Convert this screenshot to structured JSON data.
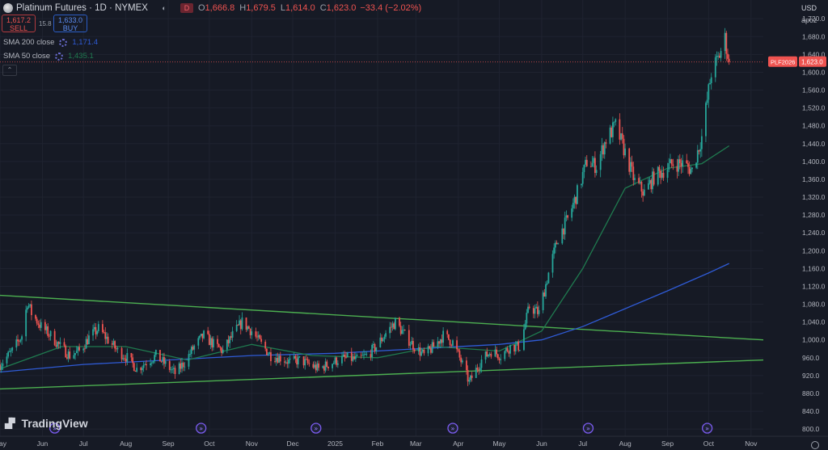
{
  "header": {
    "title": "Platinum Futures · 1D · NYMEX",
    "flag_d": "D",
    "o_label": "O",
    "o_value": "1,666.8",
    "h_label": "H",
    "h_value": "1,679.5",
    "l_label": "L",
    "l_value": "1,614.0",
    "c_label": "C",
    "c_value": "1,623.0",
    "change": "−33.4 (−2.02%)"
  },
  "trade": {
    "sell_price": "1,617.2",
    "sell_label": "SELL",
    "spread": "15.8",
    "buy_price": "1,633.0",
    "buy_label": "BUY"
  },
  "indicators": [
    {
      "name": "SMA 200 close",
      "value": "1,171.4",
      "color": "#2f5bd6"
    },
    {
      "name": "SMA 50 close",
      "value": "1,435.1",
      "color": "#1f7a4f"
    }
  ],
  "currency": "USD",
  "scale_mode": "apoz",
  "brand": "TradingView",
  "price_tag": {
    "symbol": "PLF2026",
    "value": "1,623.0"
  },
  "colors": {
    "bg": "#161a25",
    "up": "#26a69a",
    "down": "#ef5350",
    "trendline": "#4caf50",
    "grid": "#1f2330"
  },
  "chart_data": {
    "type": "candlestick",
    "y_ticks": [
      "800.0",
      "840.0",
      "880.0",
      "920.0",
      "960.0",
      "1,000.0",
      "1,040.0",
      "1,080.0",
      "1,120.0",
      "1,160.0",
      "1,200.0",
      "1,240.0",
      "1,280.0",
      "1,320.0",
      "1,360.0",
      "1,400.0",
      "1,440.0",
      "1,480.0",
      "1,520.0",
      "1,560.0",
      "1,600.0",
      "1,640.0",
      "1,680.0",
      "1,720.0"
    ],
    "ylim": [
      784,
      1762
    ],
    "x_ticks": [
      "May",
      "Jun",
      "Jul",
      "Aug",
      "Sep",
      "Oct",
      "Nov",
      "Dec",
      "2025",
      "Feb",
      "Mar",
      "Apr",
      "May",
      "Jun",
      "Jul",
      "Aug",
      "Sep",
      "Oct",
      "Nov"
    ],
    "xlim": [
      "2024-05-01",
      "2025-11-10"
    ],
    "event_dates": [
      "2024-06-10",
      "2024-09-25",
      "2024-12-18",
      "2025-03-28",
      "2025-07-05",
      "2025-09-30"
    ],
    "last_price": 1623.0,
    "close": [
      [
        "2024-05-01",
        945
      ],
      [
        "2024-05-10",
        975
      ],
      [
        "2024-05-17",
        1010
      ],
      [
        "2024-05-21",
        1085
      ],
      [
        "2024-05-24",
        1060
      ],
      [
        "2024-05-31",
        1030
      ],
      [
        "2024-06-07",
        1010
      ],
      [
        "2024-06-14",
        985
      ],
      [
        "2024-06-21",
        965
      ],
      [
        "2024-06-28",
        975
      ],
      [
        "2024-07-05",
        1005
      ],
      [
        "2024-07-12",
        1025
      ],
      [
        "2024-07-19",
        1000
      ],
      [
        "2024-07-26",
        975
      ],
      [
        "2024-08-02",
        960
      ],
      [
        "2024-08-09",
        935
      ],
      [
        "2024-08-16",
        950
      ],
      [
        "2024-08-23",
        965
      ],
      [
        "2024-08-30",
        945
      ],
      [
        "2024-09-06",
        925
      ],
      [
        "2024-09-13",
        950
      ],
      [
        "2024-09-20",
        985
      ],
      [
        "2024-09-27",
        1010
      ],
      [
        "2024-10-04",
        990
      ],
      [
        "2024-10-11",
        975
      ],
      [
        "2024-10-18",
        1010
      ],
      [
        "2024-10-25",
        1040
      ],
      [
        "2024-11-01",
        1020
      ],
      [
        "2024-11-08",
        990
      ],
      [
        "2024-11-15",
        965
      ],
      [
        "2024-11-22",
        960
      ],
      [
        "2024-11-29",
        950
      ],
      [
        "2024-12-06",
        955
      ],
      [
        "2024-12-13",
        945
      ],
      [
        "2024-12-20",
        935
      ],
      [
        "2024-12-27",
        945
      ],
      [
        "2025-01-03",
        955
      ],
      [
        "2025-01-10",
        960
      ],
      [
        "2025-01-17",
        955
      ],
      [
        "2025-01-24",
        965
      ],
      [
        "2025-01-31",
        985
      ],
      [
        "2025-02-07",
        1015
      ],
      [
        "2025-02-14",
        1040
      ],
      [
        "2025-02-21",
        1010
      ],
      [
        "2025-02-28",
        985
      ],
      [
        "2025-03-07",
        965
      ],
      [
        "2025-03-14",
        985
      ],
      [
        "2025-03-21",
        1010
      ],
      [
        "2025-03-28",
        995
      ],
      [
        "2025-04-04",
        945
      ],
      [
        "2025-04-09",
        905
      ],
      [
        "2025-04-18",
        955
      ],
      [
        "2025-04-25",
        975
      ],
      [
        "2025-05-02",
        965
      ],
      [
        "2025-05-09",
        985
      ],
      [
        "2025-05-16",
        985
      ],
      [
        "2025-05-23",
        1075
      ],
      [
        "2025-05-30",
        1060
      ],
      [
        "2025-06-06",
        1150
      ],
      [
        "2025-06-13",
        1230
      ],
      [
        "2025-06-20",
        1270
      ],
      [
        "2025-06-27",
        1330
      ],
      [
        "2025-07-04",
        1400
      ],
      [
        "2025-07-11",
        1390
      ],
      [
        "2025-07-18",
        1450
      ],
      [
        "2025-07-25",
        1480
      ],
      [
        "2025-08-01",
        1420
      ],
      [
        "2025-08-08",
        1355
      ],
      [
        "2025-08-15",
        1330
      ],
      [
        "2025-08-22",
        1365
      ],
      [
        "2025-08-29",
        1380
      ],
      [
        "2025-09-05",
        1395
      ],
      [
        "2025-09-12",
        1395
      ],
      [
        "2025-09-19",
        1380
      ],
      [
        "2025-09-26",
        1455
      ],
      [
        "2025-10-03",
        1600
      ],
      [
        "2025-10-08",
        1630
      ],
      [
        "2025-10-13",
        1675
      ],
      [
        "2025-10-16",
        1623
      ]
    ],
    "trendlines": [
      {
        "from": [
          "2024-05-01",
          1100
        ],
        "to": [
          "2025-11-10",
          1000
        ]
      },
      {
        "from": [
          "2024-05-01",
          890
        ],
        "to": [
          "2025-11-10",
          955
        ]
      }
    ],
    "sma200": [
      [
        "2024-05-01",
        928
      ],
      [
        "2024-07-01",
        945
      ],
      [
        "2024-09-01",
        955
      ],
      [
        "2024-11-01",
        965
      ],
      [
        "2025-01-01",
        970
      ],
      [
        "2025-03-01",
        980
      ],
      [
        "2025-05-01",
        990
      ],
      [
        "2025-06-01",
        1000
      ],
      [
        "2025-07-01",
        1030
      ],
      [
        "2025-08-01",
        1070
      ],
      [
        "2025-09-01",
        1110
      ],
      [
        "2025-10-01",
        1150
      ],
      [
        "2025-10-16",
        1171.4
      ]
    ],
    "sma50": [
      [
        "2024-05-01",
        935
      ],
      [
        "2024-06-15",
        985
      ],
      [
        "2024-08-01",
        985
      ],
      [
        "2024-09-15",
        955
      ],
      [
        "2024-11-01",
        990
      ],
      [
        "2024-12-15",
        965
      ],
      [
        "2025-02-01",
        960
      ],
      [
        "2025-03-15",
        985
      ],
      [
        "2025-05-01",
        975
      ],
      [
        "2025-06-01",
        1020
      ],
      [
        "2025-07-01",
        1160
      ],
      [
        "2025-08-01",
        1340
      ],
      [
        "2025-09-01",
        1385
      ],
      [
        "2025-09-26",
        1395
      ],
      [
        "2025-10-16",
        1435.1
      ]
    ]
  }
}
